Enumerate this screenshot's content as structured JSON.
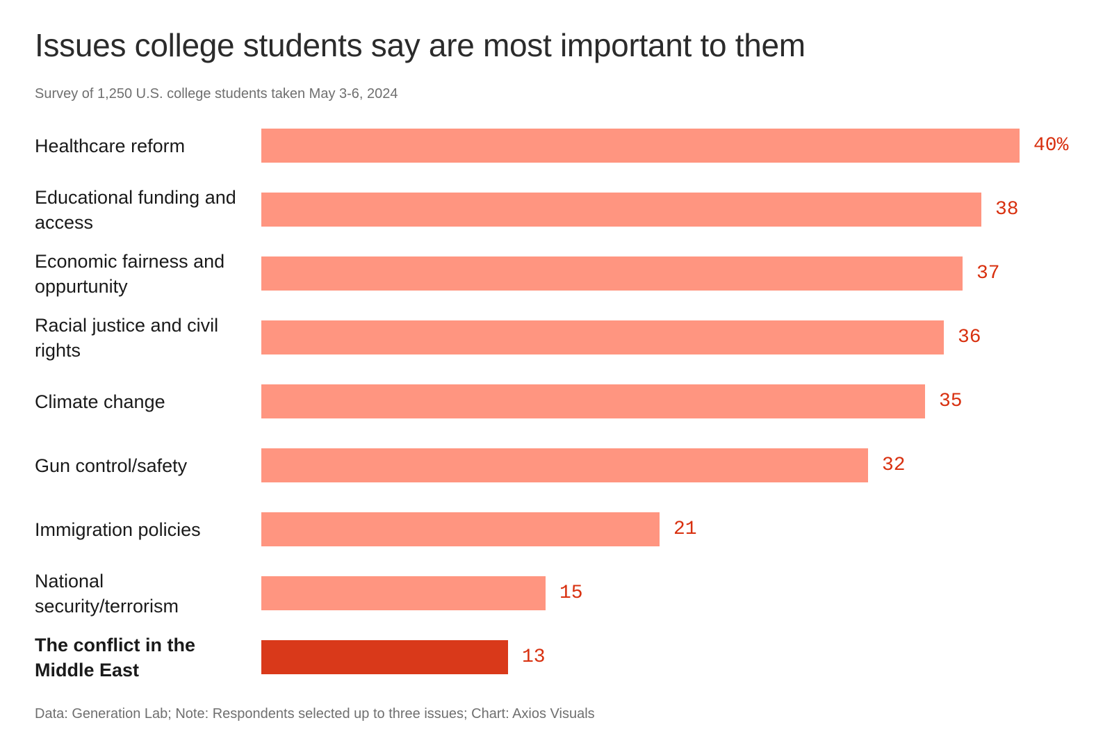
{
  "title": "Issues college students say are most important to them",
  "subtitle": "Survey of 1,250 U.S. college students taken May 3-6, 2024",
  "source": "Data: Generation Lab; Note: Respondents selected up to three issues; Chart: Axios Visuals",
  "colors": {
    "bar": "#ff9580",
    "highlight_bar": "#d9391a",
    "value_text": "#d8300f"
  },
  "chart_data": {
    "type": "bar",
    "orientation": "horizontal",
    "categories": [
      "Healthcare reform",
      "Educational funding and access",
      "Economic fairness and oppurtunity",
      "Racial justice and civil rights",
      "Climate change",
      "Gun control/safety",
      "Immigration policies",
      "National security/terrorism",
      "The conflict in the Middle East"
    ],
    "values": [
      40,
      38,
      37,
      36,
      35,
      32,
      21,
      15,
      13
    ],
    "value_labels": [
      "40%",
      "38",
      "37",
      "36",
      "35",
      "32",
      "21",
      "15",
      "13"
    ],
    "highlighted": [
      false,
      false,
      false,
      false,
      false,
      false,
      false,
      false,
      true
    ],
    "unit": "%",
    "xlim": [
      0,
      40
    ],
    "grid": false,
    "legend": "none"
  }
}
